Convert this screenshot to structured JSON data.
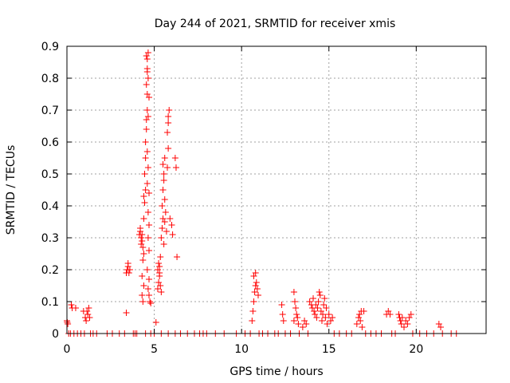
{
  "chart_data": {
    "type": "scatter",
    "title": "Day 244 of 2021, SRMTID for receiver xmis",
    "xlabel": "GPS time / hours",
    "ylabel": "SRMTID / TECUs",
    "xlim": [
      0,
      24
    ],
    "ylim": [
      0,
      0.9
    ],
    "xticks": [
      0,
      5,
      10,
      15,
      20
    ],
    "xtick_labels": [
      "0",
      "5",
      "10",
      "15",
      "20"
    ],
    "yticks": [
      0,
      0.1,
      0.2,
      0.3,
      0.4,
      0.5,
      0.6,
      0.7,
      0.8,
      0.9
    ],
    "ytick_labels": [
      "0",
      "0.1",
      "0.2",
      "0.3",
      "0.4",
      "0.5",
      "0.6",
      "0.7",
      "0.8",
      "0.9"
    ],
    "grid": true,
    "marker": "+",
    "series": [
      {
        "name": "SRMTID",
        "color": "#ff0000",
        "points": [
          [
            0.0,
            0.04
          ],
          [
            0.02,
            0.035
          ],
          [
            0.05,
            0.03
          ],
          [
            0.1,
            0.0
          ],
          [
            0.2,
            0.0
          ],
          [
            0.25,
            0.09
          ],
          [
            0.3,
            0.08
          ],
          [
            0.4,
            0.0
          ],
          [
            0.5,
            0.08
          ],
          [
            0.6,
            0.0
          ],
          [
            0.8,
            0.0
          ],
          [
            0.95,
            0.07
          ],
          [
            1.0,
            0.0
          ],
          [
            1.05,
            0.05
          ],
          [
            1.1,
            0.04
          ],
          [
            1.15,
            0.07
          ],
          [
            1.2,
            0.06
          ],
          [
            1.25,
            0.08
          ],
          [
            1.3,
            0.05
          ],
          [
            1.35,
            0.0
          ],
          [
            1.5,
            0.0
          ],
          [
            1.7,
            0.0
          ],
          [
            2.3,
            0.0
          ],
          [
            2.6,
            0.0
          ],
          [
            3.0,
            0.0
          ],
          [
            3.3,
            0.0
          ],
          [
            3.4,
            0.065
          ],
          [
            3.45,
            0.2
          ],
          [
            3.5,
            0.21
          ],
          [
            3.55,
            0.19
          ],
          [
            3.5,
            0.22
          ],
          [
            3.6,
            0.2
          ],
          [
            3.4,
            0.19
          ],
          [
            3.8,
            0.0
          ],
          [
            3.9,
            0.0
          ],
          [
            4.0,
            0.0
          ],
          [
            4.15,
            0.31
          ],
          [
            4.2,
            0.32
          ],
          [
            4.25,
            0.3
          ],
          [
            4.3,
            0.29
          ],
          [
            4.2,
            0.33
          ],
          [
            4.3,
            0.31
          ],
          [
            4.35,
            0.27
          ],
          [
            4.25,
            0.28
          ],
          [
            4.3,
            0.12
          ],
          [
            4.35,
            0.1
          ],
          [
            4.4,
            0.15
          ],
          [
            4.3,
            0.18
          ],
          [
            4.35,
            0.23
          ],
          [
            4.4,
            0.25
          ],
          [
            4.4,
            0.36
          ],
          [
            4.45,
            0.41
          ],
          [
            4.4,
            0.43
          ],
          [
            4.5,
            0.45
          ],
          [
            4.45,
            0.5
          ],
          [
            4.5,
            0.55
          ],
          [
            4.5,
            0.6
          ],
          [
            4.55,
            0.64
          ],
          [
            4.55,
            0.67
          ],
          [
            4.6,
            0.7
          ],
          [
            4.6,
            0.75
          ],
          [
            4.55,
            0.78
          ],
          [
            4.6,
            0.82
          ],
          [
            4.55,
            0.87
          ],
          [
            4.6,
            0.86
          ],
          [
            4.65,
            0.88
          ],
          [
            4.6,
            0.83
          ],
          [
            4.65,
            0.8
          ],
          [
            4.7,
            0.74
          ],
          [
            4.65,
            0.68
          ],
          [
            4.6,
            0.57
          ],
          [
            4.65,
            0.52
          ],
          [
            4.6,
            0.47
          ],
          [
            4.7,
            0.44
          ],
          [
            4.65,
            0.38
          ],
          [
            4.7,
            0.34
          ],
          [
            4.65,
            0.3
          ],
          [
            4.7,
            0.26
          ],
          [
            4.6,
            0.2
          ],
          [
            4.7,
            0.17
          ],
          [
            4.65,
            0.14
          ],
          [
            4.7,
            0.12
          ],
          [
            4.75,
            0.1
          ],
          [
            4.8,
            0.095
          ],
          [
            4.5,
            0.0
          ],
          [
            4.8,
            0.0
          ],
          [
            5.0,
            0.0
          ],
          [
            5.1,
            0.035
          ],
          [
            5.2,
            0.14
          ],
          [
            5.25,
            0.16
          ],
          [
            5.2,
            0.2
          ],
          [
            5.3,
            0.18
          ],
          [
            5.25,
            0.22
          ],
          [
            5.3,
            0.21
          ],
          [
            5.35,
            0.15
          ],
          [
            5.4,
            0.13
          ],
          [
            5.3,
            0.19
          ],
          [
            5.35,
            0.24
          ],
          [
            5.4,
            0.3
          ],
          [
            5.45,
            0.33
          ],
          [
            5.5,
            0.36
          ],
          [
            5.45,
            0.4
          ],
          [
            5.5,
            0.45
          ],
          [
            5.55,
            0.5
          ],
          [
            5.5,
            0.53
          ],
          [
            5.6,
            0.55
          ],
          [
            5.55,
            0.48
          ],
          [
            5.6,
            0.42
          ],
          [
            5.65,
            0.38
          ],
          [
            5.6,
            0.35
          ],
          [
            5.7,
            0.32
          ],
          [
            5.55,
            0.28
          ],
          [
            5.75,
            0.52
          ],
          [
            5.8,
            0.58
          ],
          [
            5.75,
            0.63
          ],
          [
            5.8,
            0.68
          ],
          [
            5.85,
            0.7
          ],
          [
            5.8,
            0.66
          ],
          [
            5.9,
            0.36
          ],
          [
            6.0,
            0.34
          ],
          [
            6.05,
            0.31
          ],
          [
            6.2,
            0.55
          ],
          [
            6.25,
            0.52
          ],
          [
            6.3,
            0.24
          ],
          [
            5.4,
            0.0
          ],
          [
            5.8,
            0.0
          ],
          [
            6.2,
            0.0
          ],
          [
            6.5,
            0.0
          ],
          [
            6.9,
            0.0
          ],
          [
            7.3,
            0.0
          ],
          [
            7.6,
            0.0
          ],
          [
            7.8,
            0.0
          ],
          [
            8.0,
            0.0
          ],
          [
            8.5,
            0.0
          ],
          [
            9.0,
            0.0
          ],
          [
            9.7,
            0.0
          ],
          [
            10.2,
            0.0
          ],
          [
            10.5,
            0.0
          ],
          [
            10.6,
            0.04
          ],
          [
            10.65,
            0.07
          ],
          [
            10.7,
            0.1
          ],
          [
            10.75,
            0.13
          ],
          [
            10.8,
            0.15
          ],
          [
            10.85,
            0.16
          ],
          [
            10.7,
            0.18
          ],
          [
            10.8,
            0.19
          ],
          [
            10.9,
            0.14
          ],
          [
            10.95,
            0.12
          ],
          [
            11.0,
            0.0
          ],
          [
            11.2,
            0.0
          ],
          [
            11.5,
            0.0
          ],
          [
            11.9,
            0.0
          ],
          [
            12.1,
            0.0
          ],
          [
            12.3,
            0.09
          ],
          [
            12.35,
            0.06
          ],
          [
            12.4,
            0.04
          ],
          [
            12.5,
            0.0
          ],
          [
            12.8,
            0.0
          ],
          [
            13.0,
            0.13
          ],
          [
            13.05,
            0.1
          ],
          [
            13.1,
            0.08
          ],
          [
            13.15,
            0.06
          ],
          [
            13.2,
            0.05
          ],
          [
            13.0,
            0.04
          ],
          [
            13.25,
            0.03
          ],
          [
            13.3,
            0.0
          ],
          [
            13.5,
            0.02
          ],
          [
            13.6,
            0.04
          ],
          [
            13.7,
            0.03
          ],
          [
            13.8,
            0.0
          ],
          [
            13.9,
            0.1
          ],
          [
            14.0,
            0.09
          ],
          [
            14.05,
            0.08
          ],
          [
            14.1,
            0.11
          ],
          [
            14.15,
            0.07
          ],
          [
            14.2,
            0.06
          ],
          [
            14.25,
            0.09
          ],
          [
            14.3,
            0.05
          ],
          [
            14.35,
            0.08
          ],
          [
            14.4,
            0.1
          ],
          [
            14.45,
            0.13
          ],
          [
            14.5,
            0.12
          ],
          [
            14.55,
            0.07
          ],
          [
            14.6,
            0.04
          ],
          [
            14.65,
            0.06
          ],
          [
            14.7,
            0.09
          ],
          [
            14.75,
            0.11
          ],
          [
            14.8,
            0.05
          ],
          [
            14.85,
            0.08
          ],
          [
            14.9,
            0.03
          ],
          [
            15.0,
            0.06
          ],
          [
            15.1,
            0.04
          ],
          [
            15.2,
            0.05
          ],
          [
            15.3,
            0.0
          ],
          [
            15.6,
            0.0
          ],
          [
            16.0,
            0.0
          ],
          [
            16.3,
            0.0
          ],
          [
            16.6,
            0.03
          ],
          [
            16.7,
            0.05
          ],
          [
            16.75,
            0.06
          ],
          [
            16.8,
            0.04
          ],
          [
            16.85,
            0.07
          ],
          [
            16.9,
            0.02
          ],
          [
            17.0,
            0.07
          ],
          [
            17.1,
            0.0
          ],
          [
            17.4,
            0.0
          ],
          [
            17.7,
            0.0
          ],
          [
            18.0,
            0.0
          ],
          [
            18.3,
            0.06
          ],
          [
            18.4,
            0.07
          ],
          [
            18.5,
            0.06
          ],
          [
            18.6,
            0.0
          ],
          [
            18.8,
            0.0
          ],
          [
            19.0,
            0.06
          ],
          [
            19.05,
            0.05
          ],
          [
            19.1,
            0.04
          ],
          [
            19.15,
            0.03
          ],
          [
            19.2,
            0.05
          ],
          [
            19.3,
            0.02
          ],
          [
            19.4,
            0.04
          ],
          [
            19.5,
            0.03
          ],
          [
            19.6,
            0.05
          ],
          [
            19.7,
            0.06
          ],
          [
            19.8,
            0.0
          ],
          [
            20.2,
            0.0
          ],
          [
            20.6,
            0.0
          ],
          [
            21.0,
            0.0
          ],
          [
            21.3,
            0.03
          ],
          [
            21.4,
            0.02
          ],
          [
            21.5,
            0.0
          ],
          [
            22.0,
            0.0
          ],
          [
            22.3,
            0.0
          ]
        ]
      }
    ]
  }
}
